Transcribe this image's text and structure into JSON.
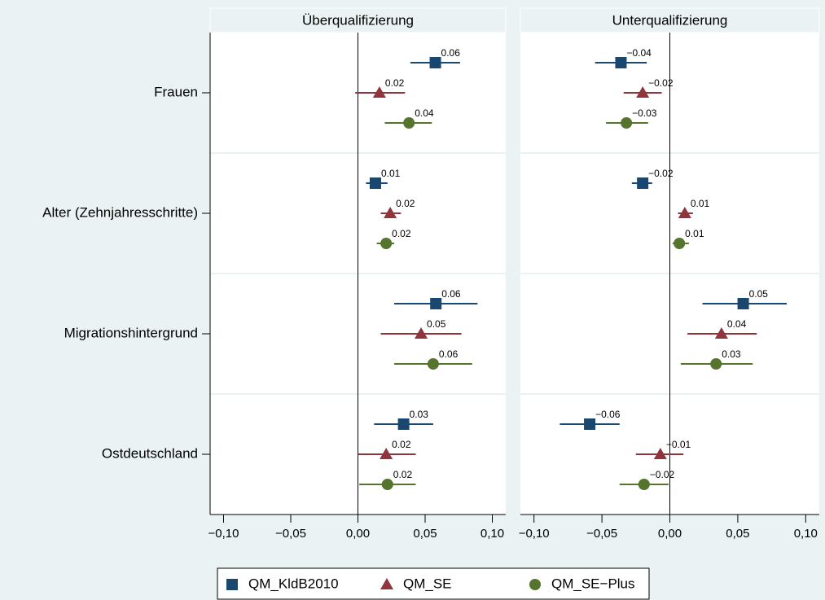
{
  "chart_data": [
    {
      "type": "coefplot",
      "title": "Überqualifizierung",
      "categories": [
        "Frauen",
        "Alter (Zehnjahresschritte)",
        "Migrationshintergrund",
        "Ostdeutschland"
      ],
      "xlim": [
        -0.11,
        0.11
      ],
      "xticks": [
        {
          "value": -0.1,
          "label": "−0,10"
        },
        {
          "value": -0.05,
          "label": "−0,05"
        },
        {
          "value": 0,
          "label": "0,00"
        },
        {
          "value": 0.05,
          "label": "0,05"
        },
        {
          "value": 0.1,
          "label": "0,10"
        }
      ],
      "xline": 0,
      "series": [
        {
          "values": [
            0.0576,
            0.013,
            0.058,
            0.034
          ],
          "ci_low": [
            0.039,
            0.006,
            0.027,
            0.012
          ],
          "ci_high": [
            0.076,
            0.022,
            0.089,
            0.056
          ],
          "value_labels": [
            "0.06",
            "0.01",
            "0.06",
            "0.03"
          ]
        },
        {
          "values": [
            0.016,
            0.024,
            0.047,
            0.021
          ],
          "ci_low": [
            -0.002,
            0.017,
            0.017,
            0.0
          ],
          "ci_high": [
            0.035,
            0.032,
            0.077,
            0.043
          ],
          "value_labels": [
            "0.02",
            "0.02",
            "0.05",
            "0.02"
          ]
        },
        {
          "values": [
            0.038,
            0.021,
            0.056,
            0.022
          ],
          "ci_low": [
            0.02,
            0.014,
            0.027,
            0.001
          ],
          "ci_high": [
            0.055,
            0.027,
            0.085,
            0.043
          ],
          "value_labels": [
            "0.04",
            "0.02",
            "0.06",
            "0.02"
          ]
        }
      ]
    },
    {
      "type": "coefplot",
      "title": "Unterqualifizierung",
      "xlim": [
        -0.11,
        0.11
      ],
      "xticks": [
        {
          "value": -0.1,
          "label": "−0,10"
        },
        {
          "value": -0.05,
          "label": "−0,05"
        },
        {
          "value": 0,
          "label": "0,00"
        },
        {
          "value": 0.05,
          "label": "0,05"
        },
        {
          "value": 0.1,
          "label": "0,10"
        }
      ],
      "xline": 0,
      "series": [
        {
          "values": [
            -0.036,
            -0.02,
            0.054,
            -0.059
          ],
          "ci_low": [
            -0.055,
            -0.028,
            0.024,
            -0.081
          ],
          "ci_high": [
            -0.017,
            -0.013,
            0.086,
            -0.037
          ],
          "value_labels": [
            "−0.04",
            "−0.02",
            "0.05",
            "−0.06"
          ]
        },
        {
          "values": [
            -0.02,
            0.011,
            0.038,
            -0.007
          ],
          "ci_low": [
            -0.034,
            0.006,
            0.013,
            -0.025
          ],
          "ci_high": [
            -0.006,
            0.017,
            0.064,
            0.01
          ],
          "value_labels": [
            "−0.02",
            "0.01",
            "0.04",
            "−0.01"
          ]
        },
        {
          "values": [
            -0.032,
            0.007,
            0.034,
            -0.019
          ],
          "ci_low": [
            -0.047,
            0.002,
            0.008,
            -0.037
          ],
          "ci_high": [
            -0.016,
            0.014,
            0.061,
            -0.001
          ],
          "value_labels": [
            "−0.03",
            "0.01",
            "0.03",
            "−0.02"
          ]
        }
      ]
    }
  ],
  "legend": [
    {
      "name": "QM_KldB2010",
      "color": "#1a476f",
      "marker": "square"
    },
    {
      "name": "QM_SE",
      "color": "#90353b",
      "marker": "triangle"
    },
    {
      "name": "QM_SE−Plus",
      "color": "#55752f",
      "marker": "circle"
    }
  ]
}
